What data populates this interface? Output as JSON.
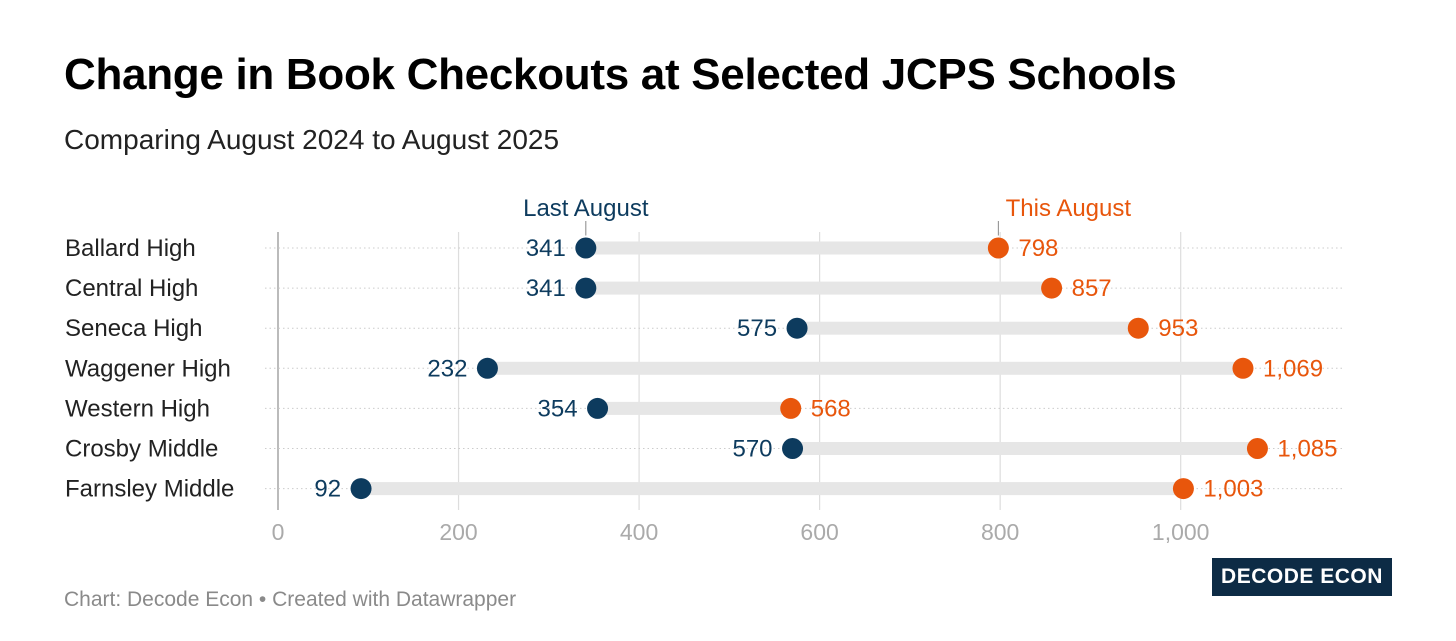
{
  "title": "Change in Book Checkouts at Selected JCPS Schools",
  "subtitle": "Comparing August 2024 to August 2025",
  "footer": "Chart: Decode Econ • Created with Datawrapper",
  "logo": {
    "part1": "DECODE",
    "part2": "ECON"
  },
  "colors": {
    "last": "#0d3b5e",
    "this": "#e8560c",
    "range": "#e6e6e6",
    "grid": "#dddddd",
    "axis_text": "#aaaaaa"
  },
  "chart_data": {
    "type": "range-dot",
    "categories": [
      "Ballard High",
      "Central High",
      "Seneca High",
      "Waggener High",
      "Western High",
      "Crosby Middle",
      "Farnsley Middle"
    ],
    "series": [
      {
        "name": "Last August",
        "values": [
          341,
          341,
          575,
          232,
          354,
          570,
          92
        ],
        "labels": [
          "341",
          "341",
          "575",
          "232",
          "354",
          "570",
          "92"
        ]
      },
      {
        "name": "This August",
        "values": [
          798,
          857,
          953,
          1069,
          568,
          1085,
          1003
        ],
        "labels": [
          "798",
          "857",
          "953",
          "1,069",
          "568",
          "1,085",
          "1,003"
        ]
      }
    ],
    "xlim": [
      0,
      1185
    ],
    "xticks": [
      0,
      200,
      400,
      600,
      800,
      1000
    ],
    "xtick_labels": [
      "0",
      "200",
      "400",
      "600",
      "800",
      "1,000"
    ]
  }
}
